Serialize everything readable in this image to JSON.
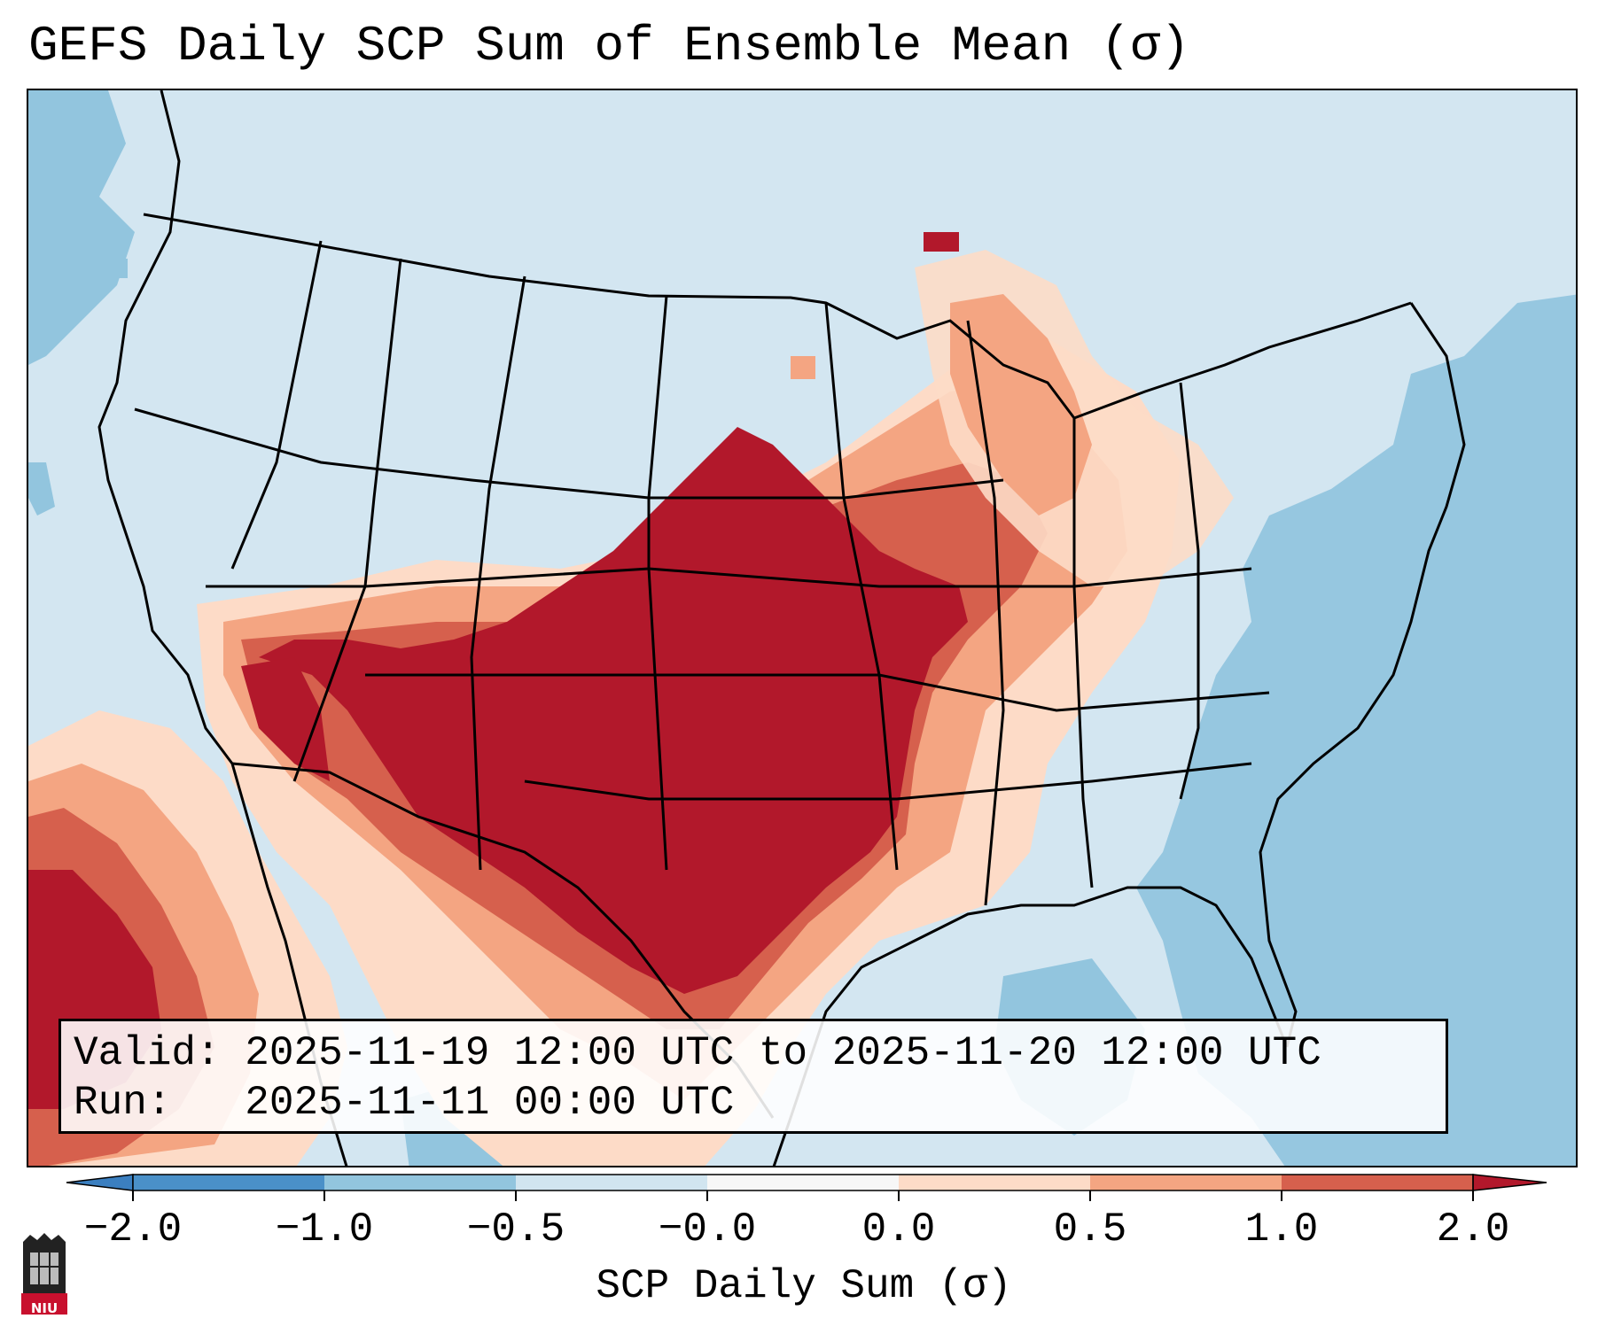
{
  "title": "GEFS Daily SCP Sum of Ensemble Mean (σ)",
  "info": {
    "valid_label": "Valid:",
    "valid_value": "2025-11-19 12:00 UTC to 2025-11-20 12:00 UTC",
    "run_label": "Run:",
    "run_value": "2025-11-11 00:00 UTC"
  },
  "colorbar": {
    "label": "SCP Daily Sum (σ)",
    "ticks": [
      "−2.0",
      "−1.0",
      "−0.5",
      "−0.0",
      "0.0",
      "0.5",
      "1.0",
      "2.0"
    ],
    "colors": {
      "under": "#3b7fc0",
      "b1": "#4a90c8",
      "b2": "#92c5de",
      "b3": "#d1e5f0",
      "b4": "#f7f7f7",
      "b5": "#fddbc7",
      "b6": "#f4a582",
      "b7": "#d6604d",
      "over": "#b2182b"
    }
  },
  "logo": {
    "text": "NIU",
    "name": "niu-logo"
  }
}
